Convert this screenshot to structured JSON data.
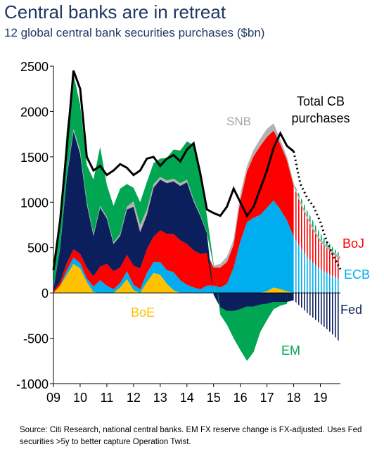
{
  "title": "Central banks are in retreat",
  "subtitle": "12 global central bank securities purchases ($bn)",
  "source": "Source: Citi Research, national central banks. EM FX reserve change is FX-adjusted. Uses Fed securities >5y to better capture Operation Twist.",
  "colors": {
    "em": "#00a651",
    "boj": "#ff0000",
    "ecb": "#00aeef",
    "fed": "#0b1f5c",
    "boe": "#ffc000",
    "snb": "#b3b3b3",
    "total": "#000000",
    "em_label": "#00a651",
    "boj_label": "#ff0000",
    "ecb_label": "#00aeef",
    "fed_label": "#0b1f5c",
    "boe_label": "#ffc000",
    "snb_label": "#a6a6a6"
  },
  "chart_data": {
    "type": "area",
    "title": "Central banks are in retreat",
    "subtitle": "12 global central bank securities purchases ($bn)",
    "ylim": [
      -1000,
      2500
    ],
    "yticks": [
      "-1000",
      "-500",
      "0",
      "500",
      "1000",
      "1500",
      "2000",
      "2500"
    ],
    "xlim": [
      2009,
      2019.75
    ],
    "xticks": [
      "09",
      "10",
      "11",
      "12",
      "13",
      "14",
      "15",
      "16",
      "17",
      "18",
      "19"
    ],
    "forecast_from": 2018.0,
    "x": [
      2009.0,
      2009.25,
      2009.5,
      2009.75,
      2010.0,
      2010.25,
      2010.5,
      2010.75,
      2011.0,
      2011.25,
      2011.5,
      2011.75,
      2012.0,
      2012.25,
      2012.5,
      2012.75,
      2013.0,
      2013.25,
      2013.5,
      2013.75,
      2014.0,
      2014.25,
      2014.5,
      2014.75,
      2015.0,
      2015.25,
      2015.5,
      2015.75,
      2016.0,
      2016.25,
      2016.5,
      2016.75,
      2017.0,
      2017.25,
      2017.5,
      2017.75,
      2018.0,
      2018.25,
      2018.5,
      2018.75,
      2019.0,
      2019.25,
      2019.5,
      2019.75
    ],
    "series": [
      {
        "name": "BoE",
        "values": [
          0,
          80,
          200,
          320,
          270,
          120,
          10,
          0,
          0,
          0,
          60,
          150,
          30,
          0,
          120,
          220,
          200,
          100,
          30,
          0,
          0,
          0,
          0,
          0,
          0,
          0,
          0,
          0,
          0,
          0,
          0,
          0,
          20,
          60,
          40,
          20,
          0,
          0,
          0,
          0,
          0,
          0,
          0,
          0
        ]
      },
      {
        "name": "ECB",
        "values": [
          0,
          0,
          50,
          70,
          60,
          40,
          60,
          140,
          80,
          40,
          50,
          90,
          60,
          40,
          100,
          120,
          140,
          150,
          200,
          140,
          90,
          60,
          40,
          80,
          80,
          60,
          100,
          280,
          570,
          780,
          830,
          860,
          920,
          960,
          880,
          780,
          620,
          500,
          400,
          320,
          260,
          220,
          180,
          150
        ]
      },
      {
        "name": "BoJ",
        "values": [
          20,
          40,
          80,
          90,
          100,
          120,
          110,
          150,
          240,
          200,
          170,
          180,
          210,
          230,
          260,
          280,
          350,
          400,
          420,
          440,
          450,
          410,
          390,
          360,
          200,
          220,
          240,
          250,
          450,
          560,
          680,
          760,
          780,
          770,
          720,
          660,
          560,
          480,
          420,
          360,
          300,
          270,
          240,
          220
        ]
      },
      {
        "name": "Fed",
        "values": [
          20,
          380,
          950,
          1300,
          1100,
          700,
          450,
          650,
          500,
          300,
          350,
          500,
          650,
          400,
          380,
          540,
          560,
          560,
          580,
          600,
          680,
          540,
          420,
          220,
          -20,
          -160,
          -200,
          -200,
          -180,
          -150,
          -150,
          -130,
          -120,
          -100,
          -100,
          -100,
          -80,
          -150,
          -220,
          -280,
          -340,
          -400,
          -470,
          -550
        ]
      },
      {
        "name": "SNB",
        "values": [
          0,
          10,
          20,
          30,
          40,
          30,
          20,
          20,
          20,
          20,
          20,
          30,
          60,
          80,
          60,
          40,
          30,
          30,
          30,
          30,
          30,
          20,
          10,
          10,
          20,
          40,
          60,
          60,
          70,
          60,
          70,
          80,
          90,
          80,
          50,
          40,
          30,
          30,
          30,
          30,
          30,
          30,
          30,
          30
        ]
      },
      {
        "name": "EM",
        "values": [
          150,
          300,
          500,
          600,
          500,
          400,
          600,
          650,
          350,
          400,
          500,
          250,
          150,
          250,
          300,
          230,
          200,
          250,
          320,
          360,
          420,
          600,
          420,
          180,
          20,
          -80,
          -150,
          -300,
          -450,
          -600,
          -500,
          -300,
          -180,
          -80,
          -40,
          -20,
          0,
          50,
          60,
          70,
          60,
          50,
          40,
          30
        ]
      }
    ],
    "total": {
      "name": "Total CB purchases",
      "values": [
        250,
        800,
        1600,
        2450,
        2250,
        1500,
        1350,
        1400,
        1300,
        1350,
        1420,
        1380,
        1300,
        1350,
        1480,
        1500,
        1400,
        1480,
        1520,
        1450,
        1580,
        1650,
        1320,
        920,
        880,
        850,
        950,
        1150,
        1000,
        850,
        950,
        1150,
        1350,
        1600,
        1760,
        1620,
        1560,
        1200,
        1050,
        950,
        780,
        560,
        400,
        260
      ]
    },
    "labels": {
      "total": [
        "Total CB",
        "purchases"
      ],
      "snb": "SNB",
      "boj": "BoJ",
      "ecb": "ECB",
      "fed": "Fed",
      "boe": "BoE",
      "em": "EM"
    }
  }
}
